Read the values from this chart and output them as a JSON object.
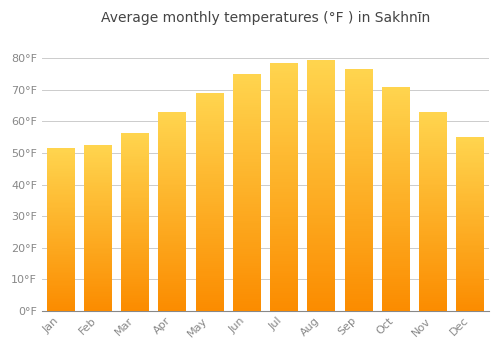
{
  "title": "Average monthly temperatures (°F ) in Sakhnīn",
  "months": [
    "Jan",
    "Feb",
    "Mar",
    "Apr",
    "May",
    "Jun",
    "Jul",
    "Aug",
    "Sep",
    "Oct",
    "Nov",
    "Dec"
  ],
  "values": [
    51.5,
    52.5,
    56.5,
    63.0,
    69.0,
    75.0,
    78.5,
    79.5,
    76.5,
    71.0,
    63.0,
    55.0
  ],
  "bar_color_top": "#FFD54F",
  "bar_color_bottom": "#FB8C00",
  "ylim": [
    0,
    88
  ],
  "yticks": [
    0,
    10,
    20,
    30,
    40,
    50,
    60,
    70,
    80
  ],
  "ytick_labels": [
    "0°F",
    "10°F",
    "20°F",
    "30°F",
    "40°F",
    "50°F",
    "60°F",
    "70°F",
    "80°F"
  ],
  "bg_color": "#FFFFFF",
  "grid_color": "#CCCCCC",
  "title_fontsize": 10,
  "tick_fontsize": 8,
  "bar_width": 0.75,
  "n_gradient_steps": 100
}
